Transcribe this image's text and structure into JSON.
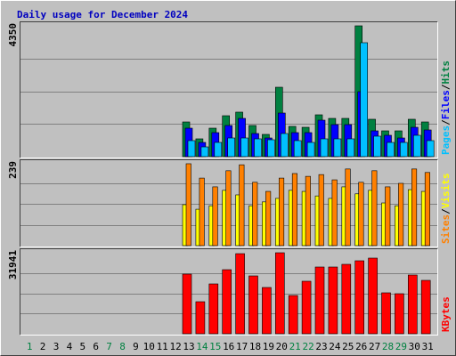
{
  "chart_data": [
    {
      "type": "bar",
      "title": "Daily usage for December 2024",
      "categories": [
        "1",
        "2",
        "3",
        "4",
        "5",
        "6",
        "7",
        "8",
        "9",
        "10",
        "11",
        "12",
        "13",
        "14",
        "15",
        "16",
        "17",
        "18",
        "19",
        "20",
        "21",
        "22",
        "23",
        "24",
        "25",
        "26",
        "27",
        "28",
        "29",
        "30",
        "31"
      ],
      "category_colors": [
        "#008040",
        "#000000",
        "#000000",
        "#000000",
        "#000000",
        "#000000",
        "#008040",
        "#008040",
        "#000000",
        "#000000",
        "#000000",
        "#000000",
        "#000000",
        "#008040",
        "#008040",
        "#000000",
        "#000000",
        "#000000",
        "#000000",
        "#000000",
        "#008040",
        "#008040",
        "#000000",
        "#000000",
        "#000000",
        "#000000",
        "#000000",
        "#008040",
        "#008040",
        "#000000",
        "#000000"
      ],
      "ylim": [
        0,
        4350
      ],
      "legend_separator": "/",
      "series": [
        {
          "name": "Hits",
          "color": "#008040",
          "values": [
            0,
            0,
            0,
            0,
            0,
            0,
            0,
            0,
            0,
            0,
            0,
            0,
            1154,
            592,
            947,
            1361,
            1480,
            1036,
            740,
            2308,
            1006,
            976,
            1391,
            1272,
            1272,
            4350,
            1243,
            858,
            858,
            1243,
            1154
          ]
        },
        {
          "name": "Files",
          "color": "#0000ff",
          "values": [
            0,
            0,
            0,
            0,
            0,
            0,
            0,
            0,
            0,
            0,
            0,
            0,
            947,
            473,
            799,
            1036,
            1272,
            769,
            621,
            1450,
            799,
            799,
            1213,
            1065,
            1065,
            2160,
            858,
            710,
            621,
            976,
            888
          ]
        },
        {
          "name": "Pages",
          "color": "#00c0ff",
          "values": [
            0,
            0,
            0,
            0,
            0,
            0,
            0,
            0,
            0,
            0,
            0,
            0,
            533,
            325,
            473,
            621,
            621,
            592,
            562,
            769,
            533,
            473,
            592,
            592,
            592,
            3788,
            681,
            473,
            473,
            710,
            533
          ]
        }
      ]
    },
    {
      "type": "bar",
      "ylim": [
        0,
        239
      ],
      "series": [
        {
          "name": "Visits",
          "color": "#ffff00",
          "values": [
            0,
            0,
            0,
            0,
            0,
            0,
            0,
            0,
            0,
            0,
            0,
            0,
            117,
            104,
            114,
            158,
            145,
            114,
            125,
            135,
            158,
            155,
            142,
            135,
            168,
            148,
            158,
            122,
            114,
            160,
            155
          ]
        },
        {
          "name": "Sites",
          "color": "#ff8000",
          "values": [
            0,
            0,
            0,
            0,
            0,
            0,
            0,
            0,
            0,
            0,
            0,
            0,
            234,
            193,
            168,
            214,
            231,
            181,
            155,
            193,
            206,
            198,
            203,
            188,
            219,
            181,
            214,
            168,
            178,
            219,
            209
          ]
        }
      ]
    },
    {
      "type": "bar",
      "ylim": [
        0,
        31941
      ],
      "series": [
        {
          "name": "KBytes",
          "color": "#ff0000",
          "values": [
            0,
            0,
            0,
            0,
            0,
            0,
            0,
            0,
            0,
            0,
            0,
            0,
            23517,
            12636,
            19656,
            25272,
            31590,
            22815,
            18252,
            31941,
            15093,
            20709,
            26325,
            26325,
            27378,
            28782,
            29835,
            16146,
            15795,
            23166,
            21060
          ]
        }
      ]
    }
  ]
}
